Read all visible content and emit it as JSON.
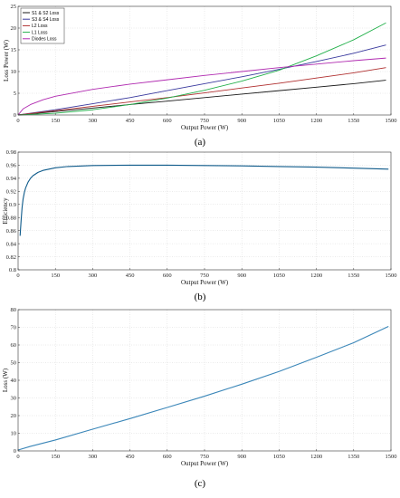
{
  "chart_data": [
    {
      "type": "line",
      "caption": "(a)",
      "xlabel": "Output Power (W)",
      "ylabel": "Loss Power (W)",
      "xlim": [
        0,
        1500
      ],
      "ylim": [
        0,
        25
      ],
      "xticks": [
        0,
        150,
        300,
        450,
        600,
        750,
        900,
        1050,
        1200,
        1350,
        1500
      ],
      "yticks": [
        0,
        5,
        10,
        15,
        20,
        25
      ],
      "grid": true,
      "legend": "top-left",
      "series": [
        {
          "name": "S1 & S2 Loss",
          "color": "#1a1a1a",
          "x": [
            0,
            150,
            300,
            450,
            600,
            750,
            900,
            1050,
            1200,
            1350,
            1480
          ],
          "y": [
            0,
            0.8,
            1.6,
            2.4,
            3.2,
            4.0,
            4.8,
            5.6,
            6.4,
            7.2,
            8.0
          ]
        },
        {
          "name": "S3 & S4 Loss",
          "color": "#3a3a9e",
          "x": [
            0,
            150,
            300,
            450,
            600,
            750,
            900,
            1050,
            1200,
            1350,
            1480
          ],
          "y": [
            0,
            1.2,
            2.6,
            4.0,
            5.6,
            7.2,
            8.8,
            10.5,
            12.3,
            14.2,
            16.1
          ]
        },
        {
          "name": "L2 Loss",
          "color": "#b03030",
          "x": [
            0,
            150,
            300,
            450,
            600,
            750,
            900,
            1050,
            1200,
            1350,
            1480
          ],
          "y": [
            0,
            1.0,
            2.0,
            3.0,
            4.0,
            5.1,
            6.2,
            7.3,
            8.5,
            9.7,
            10.9
          ]
        },
        {
          "name": "L1 Loss",
          "color": "#22b04a",
          "x": [
            0,
            150,
            300,
            450,
            600,
            750,
            900,
            1050,
            1200,
            1350,
            1480
          ],
          "y": [
            0,
            0.4,
            1.2,
            2.4,
            3.9,
            5.7,
            7.8,
            10.3,
            13.6,
            17.3,
            21.2
          ]
        },
        {
          "name": "Diodes Loss",
          "color": "#b02ab0",
          "x": [
            0,
            20,
            50,
            100,
            150,
            300,
            450,
            600,
            750,
            900,
            1050,
            1200,
            1350,
            1480
          ],
          "y": [
            0,
            1.4,
            2.4,
            3.5,
            4.3,
            5.9,
            7.1,
            8.1,
            9.1,
            10.0,
            10.9,
            11.7,
            12.5,
            13.1
          ]
        }
      ]
    },
    {
      "type": "line",
      "caption": "(b)",
      "xlabel": "Output Power (W)",
      "ylabel": "Efficiency",
      "xlim": [
        0,
        1500
      ],
      "ylim": [
        0.8,
        0.98
      ],
      "xticks": [
        0,
        150,
        300,
        450,
        600,
        750,
        900,
        1050,
        1200,
        1350,
        1500
      ],
      "yticks": [
        0.8,
        0.82,
        0.84,
        0.86,
        0.88,
        0.9,
        0.92,
        0.94,
        0.96,
        0.98
      ],
      "grid": true,
      "series": [
        {
          "color": "#0e5a8a",
          "x": [
            8,
            12,
            16,
            20,
            25,
            30,
            40,
            50,
            60,
            80,
            100,
            150,
            200,
            300,
            450,
            600,
            750,
            900,
            1050,
            1200,
            1350,
            1490
          ],
          "y": [
            0.852,
            0.875,
            0.895,
            0.908,
            0.918,
            0.925,
            0.934,
            0.94,
            0.944,
            0.949,
            0.952,
            0.956,
            0.958,
            0.9595,
            0.96,
            0.96,
            0.9595,
            0.959,
            0.958,
            0.957,
            0.9555,
            0.954
          ]
        }
      ]
    },
    {
      "type": "line",
      "caption": "(c)",
      "xlabel": "Output Power (W)",
      "ylabel": "Loss (W)",
      "xlim": [
        0,
        1500
      ],
      "ylim": [
        0,
        80
      ],
      "xticks": [
        0,
        150,
        300,
        450,
        600,
        750,
        900,
        1050,
        1200,
        1350,
        1500
      ],
      "yticks": [
        0,
        10,
        20,
        30,
        40,
        50,
        60,
        70,
        80
      ],
      "grid": true,
      "series": [
        {
          "color": "#3a86b8",
          "x": [
            0,
            50,
            150,
            300,
            450,
            600,
            750,
            900,
            1050,
            1200,
            1350,
            1490
          ],
          "y": [
            0.5,
            2.6,
            6.2,
            12.3,
            18.3,
            24.6,
            31.0,
            37.8,
            45.0,
            53.0,
            61.3,
            70.5
          ]
        }
      ]
    }
  ]
}
